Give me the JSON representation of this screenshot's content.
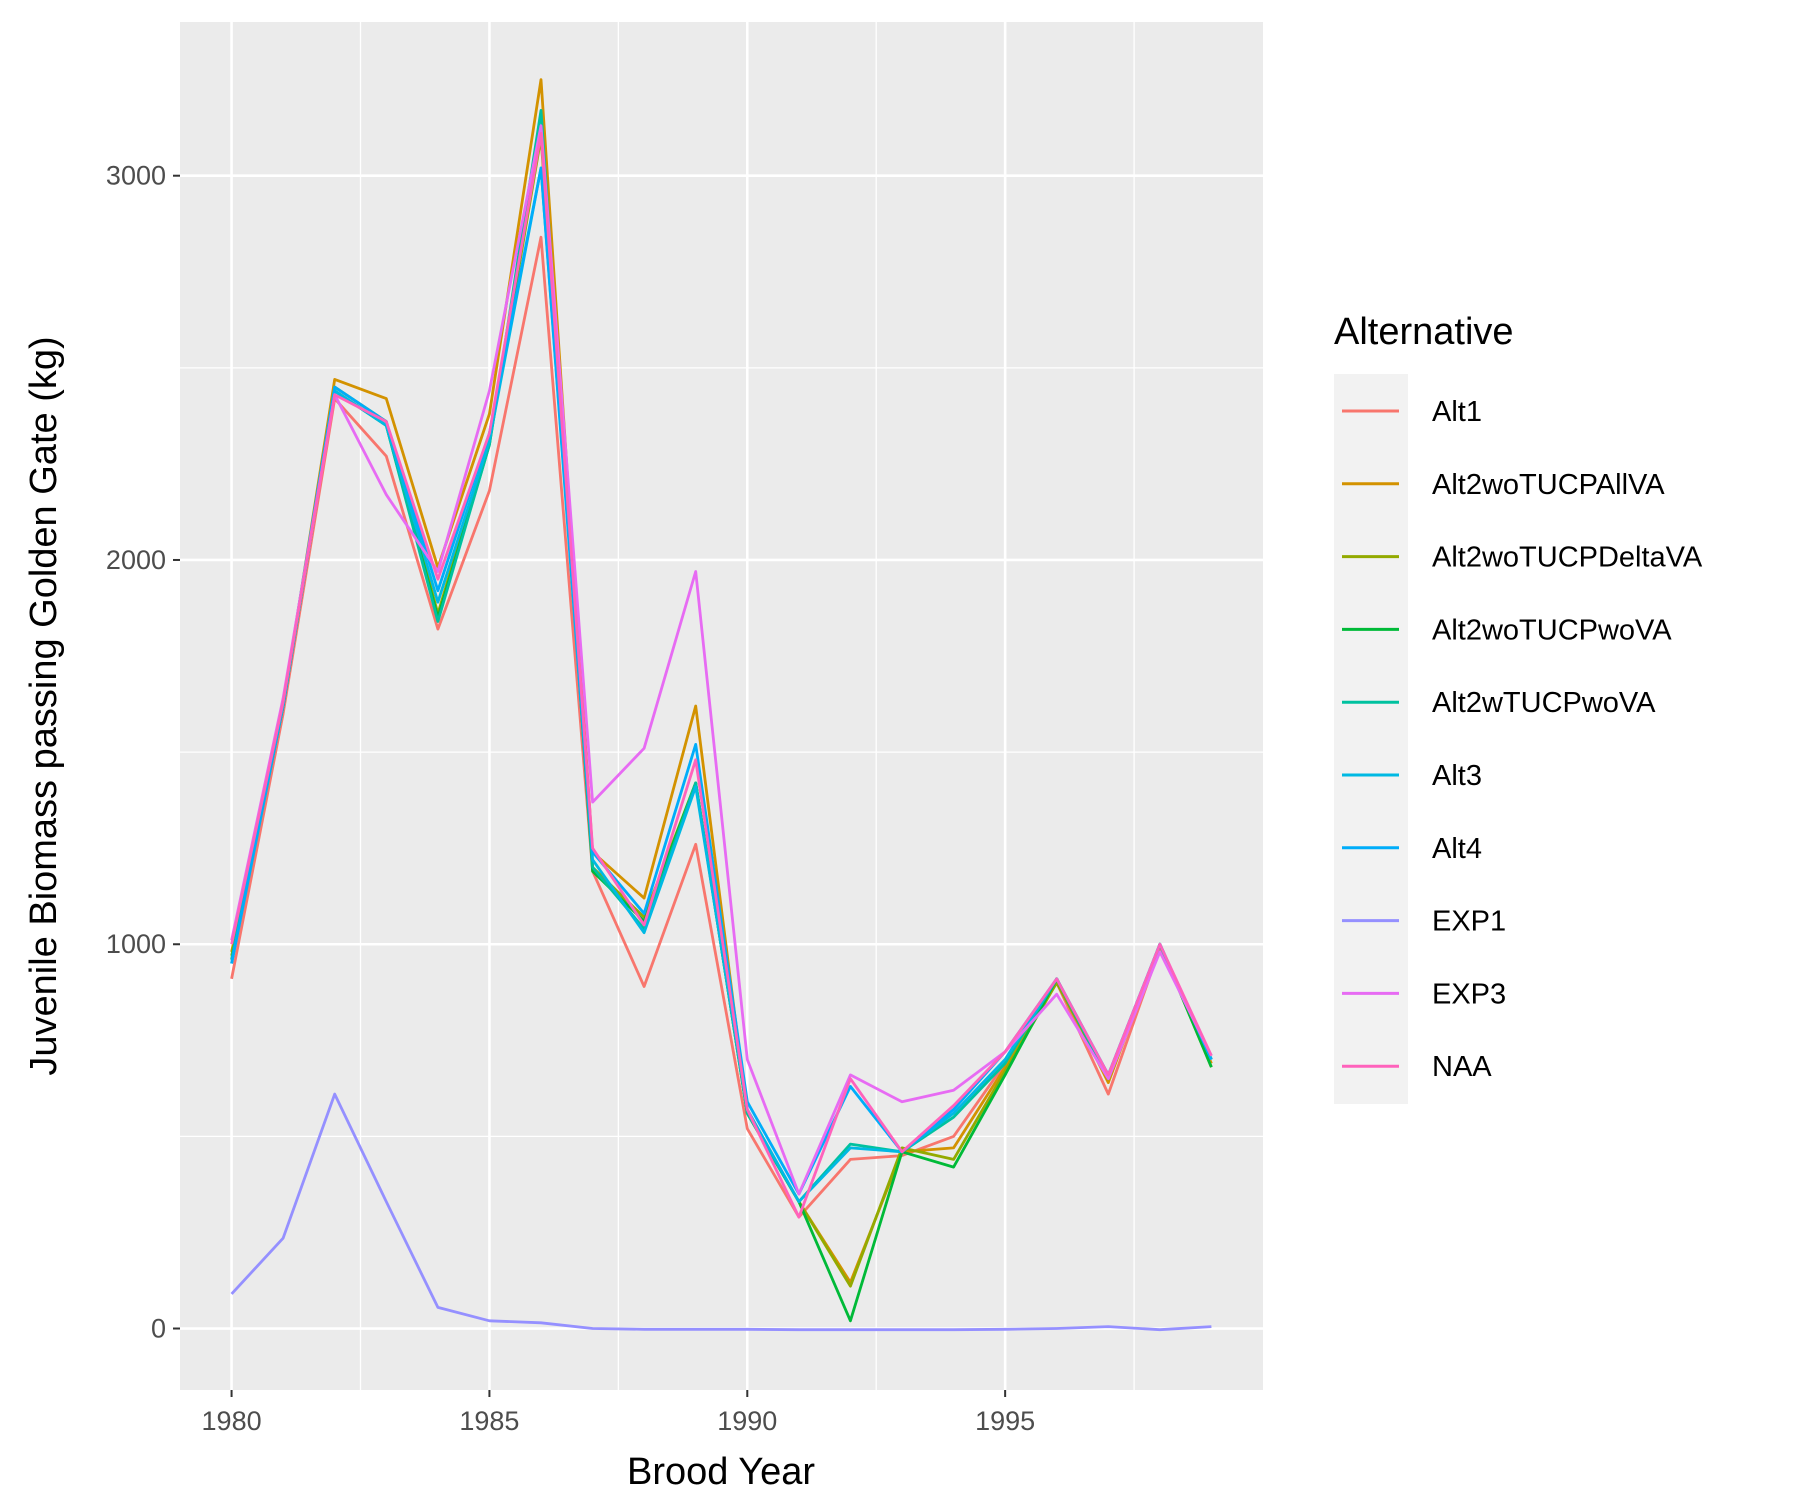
{
  "chart_data": {
    "type": "line",
    "xlabel": "Brood Year",
    "ylabel": "Juvenile Biomass passing Golden Gate (kg)",
    "xlim": [
      1979,
      2000
    ],
    "ylim": [
      -160,
      3400
    ],
    "x_ticks": [
      1980,
      1985,
      1990,
      1995
    ],
    "y_ticks": [
      0,
      1000,
      2000,
      3000
    ],
    "grid": true,
    "legend_title": "Alternative",
    "legend_position": "right",
    "x": [
      1980,
      1981,
      1982,
      1983,
      1984,
      1985,
      1986,
      1987,
      1988,
      1989,
      1990,
      1991,
      1992,
      1993,
      1994,
      1995,
      1996,
      1997,
      1998,
      1999
    ],
    "series": [
      {
        "name": "Alt1",
        "color": "#F8766D",
        "values": [
          910,
          1600,
          2420,
          2270,
          1820,
          2180,
          2840,
          1190,
          890,
          1260,
          520,
          290,
          440,
          450,
          500,
          690,
          900,
          610,
          990,
          700
        ]
      },
      {
        "name": "Alt2woTUCPAllVA",
        "color": "#D39200",
        "values": [
          980,
          1620,
          2470,
          2420,
          1980,
          2380,
          3250,
          1240,
          1120,
          1620,
          560,
          330,
          120,
          460,
          470,
          680,
          910,
          640,
          1000,
          690
        ]
      },
      {
        "name": "Alt2woTUCPDeltaVA",
        "color": "#93AA00",
        "values": [
          970,
          1620,
          2450,
          2360,
          1860,
          2310,
          3100,
          1200,
          1070,
          1420,
          560,
          330,
          110,
          470,
          440,
          670,
          900,
          650,
          1000,
          680
        ]
      },
      {
        "name": "Alt2woTUCPwoVA",
        "color": "#00BA38",
        "values": [
          960,
          1620,
          2440,
          2350,
          1850,
          2300,
          3130,
          1190,
          1060,
          1420,
          560,
          330,
          20,
          460,
          420,
          660,
          910,
          650,
          1000,
          680
        ]
      },
      {
        "name": "Alt2wTUCPwoVA",
        "color": "#00C19F",
        "values": [
          960,
          1620,
          2440,
          2350,
          1840,
          2300,
          3170,
          1200,
          1040,
          1420,
          560,
          330,
          480,
          460,
          550,
          690,
          910,
          650,
          1000,
          700
        ]
      },
      {
        "name": "Alt3",
        "color": "#00B9E3",
        "values": [
          950,
          1620,
          2440,
          2350,
          1890,
          2310,
          3020,
          1220,
          1030,
          1410,
          570,
          330,
          470,
          460,
          560,
          700,
          910,
          660,
          1000,
          700
        ]
      },
      {
        "name": "Alt4",
        "color": "#00ADFA",
        "values": [
          950,
          1630,
          2450,
          2360,
          1920,
          2330,
          3020,
          1240,
          1080,
          1520,
          590,
          350,
          630,
          460,
          570,
          720,
          910,
          660,
          1000,
          700
        ]
      },
      {
        "name": "EXP1",
        "color": "#9590FF",
        "values": [
          90,
          235,
          610,
          330,
          55,
          20,
          15,
          0,
          -2,
          -2,
          -2,
          -3,
          -3,
          -3,
          -3,
          -2,
          0,
          5,
          -3,
          5
        ]
      },
      {
        "name": "EXP3",
        "color": "#E76BF3",
        "values": [
          1010,
          1640,
          2430,
          2170,
          1970,
          2440,
          3130,
          1370,
          1510,
          1970,
          700,
          350,
          660,
          590,
          620,
          720,
          870,
          650,
          980,
          710
        ]
      },
      {
        "name": "NAA",
        "color": "#FF62BC",
        "values": [
          1000,
          1630,
          2430,
          2360,
          1950,
          2330,
          3110,
          1250,
          1050,
          1480,
          570,
          290,
          650,
          460,
          580,
          720,
          910,
          660,
          1000,
          710
        ]
      }
    ]
  }
}
